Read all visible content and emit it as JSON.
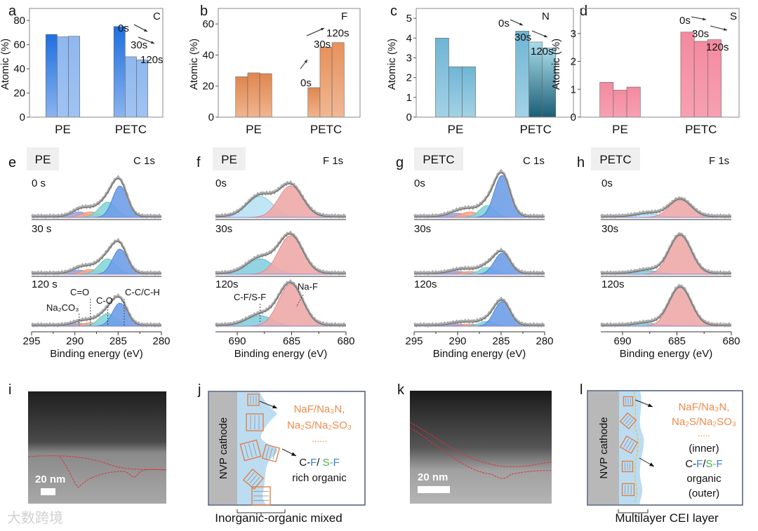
{
  "panel_letters": [
    "a",
    "b",
    "c",
    "d",
    "e",
    "f",
    "g",
    "h",
    "i",
    "j",
    "k",
    "l"
  ],
  "chart_data": [
    {
      "panel": "a",
      "type": "bar",
      "element": "C",
      "ylabel": "Atomic (%)",
      "ylim": [
        0,
        90
      ],
      "yticks": [
        0,
        20,
        40,
        60,
        80
      ],
      "categories": [
        "PE",
        "PETC"
      ],
      "series": [
        {
          "name": "0s",
          "values": [
            68.5,
            75
          ]
        },
        {
          "name": "30s",
          "values": [
            66.5,
            50
          ]
        },
        {
          "name": "120s",
          "values": [
            67,
            47.5
          ]
        }
      ],
      "annotations": [
        "0s",
        "30s",
        "120s"
      ],
      "colors": [
        "#1f6fe0",
        "#9cc0f0"
      ]
    },
    {
      "panel": "b",
      "type": "bar",
      "element": "F",
      "ylabel": "Atomic (%)",
      "ylim": [
        0,
        70
      ],
      "yticks": [
        0,
        20,
        40,
        60
      ],
      "categories": [
        "PE",
        "PETC"
      ],
      "series": [
        {
          "name": "0s",
          "values": [
            26,
            19
          ]
        },
        {
          "name": "30s",
          "values": [
            28.5,
            45
          ]
        },
        {
          "name": "120s",
          "values": [
            28,
            48
          ]
        }
      ],
      "annotations": [
        "0s",
        "30s",
        "120s"
      ],
      "colors": [
        "#e0864f",
        "#f3b28c"
      ]
    },
    {
      "panel": "c",
      "type": "bar",
      "element": "N",
      "ylabel": "Atomic (%)",
      "ylim": [
        0,
        5.5
      ],
      "yticks": [
        0,
        1,
        2,
        3,
        4,
        5
      ],
      "categories": [
        "PE",
        "PETC"
      ],
      "series": [
        {
          "name": "0s",
          "values": [
            4.0,
            4.35
          ]
        },
        {
          "name": "30s",
          "values": [
            2.55,
            3.8
          ]
        },
        {
          "name": "120s",
          "values": [
            2.55,
            3.5
          ]
        }
      ],
      "annotations": [
        "0s",
        "30s",
        "120s"
      ],
      "colors": [
        "#6fb5d4",
        "#1b5e75"
      ]
    },
    {
      "panel": "d",
      "type": "bar",
      "element": "S",
      "ylabel": "Atomic (%)",
      "ylim": [
        0,
        3.9
      ],
      "yticks": [
        0,
        1,
        2,
        3
      ],
      "categories": [
        "PE",
        "PETC"
      ],
      "series": [
        {
          "name": "0s",
          "values": [
            1.25,
            3.05
          ]
        },
        {
          "name": "30s",
          "values": [
            0.97,
            2.72
          ]
        },
        {
          "name": "120s",
          "values": [
            1.08,
            2.78
          ]
        }
      ],
      "annotations": [
        "0s",
        "30s",
        "120s"
      ],
      "colors": [
        "#f48aa0",
        "#f7a9b8"
      ]
    },
    {
      "panel": "e",
      "type": "line",
      "sample": "PE",
      "core_level": "C 1s",
      "xlabel": "Binding energy (eV)",
      "xlim": [
        295,
        280
      ],
      "xticks": [
        295,
        290,
        285,
        280
      ],
      "rows": [
        "0 s",
        "30 s",
        "120 s"
      ],
      "components": [
        {
          "name": "Na₂CO₃",
          "center": 289.5,
          "sigma": 0.9
        },
        {
          "name": "C=O",
          "center": 288.2,
          "sigma": 1.0
        },
        {
          "name": "C-O",
          "center": 286.2,
          "sigma": 1.0
        },
        {
          "name": "C-C/C-H",
          "center": 284.8,
          "sigma": 0.85
        }
      ],
      "intensities": [
        [
          8,
          8,
          22,
          45
        ],
        [
          6,
          7,
          22,
          36
        ],
        [
          4,
          5,
          18,
          33
        ]
      ],
      "annotations": [
        "Na₂CO₃",
        "C=O",
        "C-O",
        "C-C/C-H"
      ]
    },
    {
      "panel": "f",
      "type": "line",
      "sample": "PE",
      "core_level": "F 1s",
      "xlabel": "Binding energy (eV)",
      "xlim": [
        692,
        680
      ],
      "xticks": [
        690,
        685,
        680
      ],
      "rows": [
        "0s",
        "30s",
        "120s"
      ],
      "components": [
        {
          "name": "C-F/S-F",
          "center": 687.9,
          "sigma": 1.2
        },
        {
          "name": "Na-F",
          "center": 685.1,
          "sigma": 1.1
        }
      ],
      "intensities": [
        [
          30,
          45
        ],
        [
          22,
          55
        ],
        [
          15,
          60
        ]
      ],
      "annotations": [
        "C-F/S-F",
        "Na-F"
      ]
    },
    {
      "panel": "g",
      "type": "line",
      "sample": "PETC",
      "core_level": "C 1s",
      "xlabel": "Binding energy (eV)",
      "xlim": [
        295,
        280
      ],
      "xticks": [
        295,
        290,
        285,
        280
      ],
      "rows": [
        "0s",
        "30s",
        "120s"
      ],
      "components": [
        {
          "name": "Na₂CO₃",
          "center": 290.0,
          "sigma": 1.1
        },
        {
          "name": "C=O",
          "center": 288.6,
          "sigma": 1.0
        },
        {
          "name": "C-O",
          "center": 286.6,
          "sigma": 0.9
        },
        {
          "name": "C-C/C-H",
          "center": 284.9,
          "sigma": 0.9
        }
      ],
      "intensities": [
        [
          6,
          8,
          17,
          60
        ],
        [
          4,
          4,
          10,
          30
        ],
        [
          3,
          3,
          7,
          35
        ]
      ]
    },
    {
      "panel": "h",
      "type": "line",
      "sample": "PETC",
      "core_level": "F 1s",
      "xlabel": "Binding energy (eV)",
      "xlim": [
        692,
        680
      ],
      "xticks": [
        690,
        685,
        680
      ],
      "rows": [
        "0s",
        "30s",
        "120s"
      ],
      "components": [
        {
          "name": "C-F/S-F",
          "center": 687.6,
          "sigma": 1.1
        },
        {
          "name": "Na-F",
          "center": 684.7,
          "sigma": 1.0
        }
      ],
      "intensities": [
        [
          5,
          25
        ],
        [
          5,
          55
        ],
        [
          4,
          55
        ]
      ]
    }
  ],
  "tem": {
    "scale_bar_i": "20 nm",
    "scale_bar_k": "20 nm"
  },
  "schematic_j": {
    "cathode": "NVP cathode",
    "inorganic_1": "NaF/Na₃N,",
    "inorganic_2": "Na₂S/Na₂SO₃",
    "dots": "......",
    "organic_parts": [
      "C-",
      "F",
      "/ ",
      "S-",
      "F"
    ],
    "organic_2": "rich organic",
    "caption": "Inorganic-organic  mixed"
  },
  "schematic_l": {
    "cathode": "NVP cathode",
    "inorganic_1": "NaF/Na₃N,",
    "inorganic_2": "Na₂S/Na₂SO₃",
    "dots": ".....",
    "inner": "(inner)",
    "organic_parts": [
      "C-",
      "F",
      "/",
      "S-",
      "F"
    ],
    "organic_2": "organic",
    "outer": "(outer)",
    "caption": "Multilayer  CEI layer"
  },
  "watermark": "大数跨境",
  "colors": {
    "orange_text": "#ee8a4a",
    "blue_text": "#3a7fd8",
    "green_text": "#4caf50",
    "layer_blue": "#bcdcf2",
    "cathode_gray": "#b8b8b8"
  }
}
